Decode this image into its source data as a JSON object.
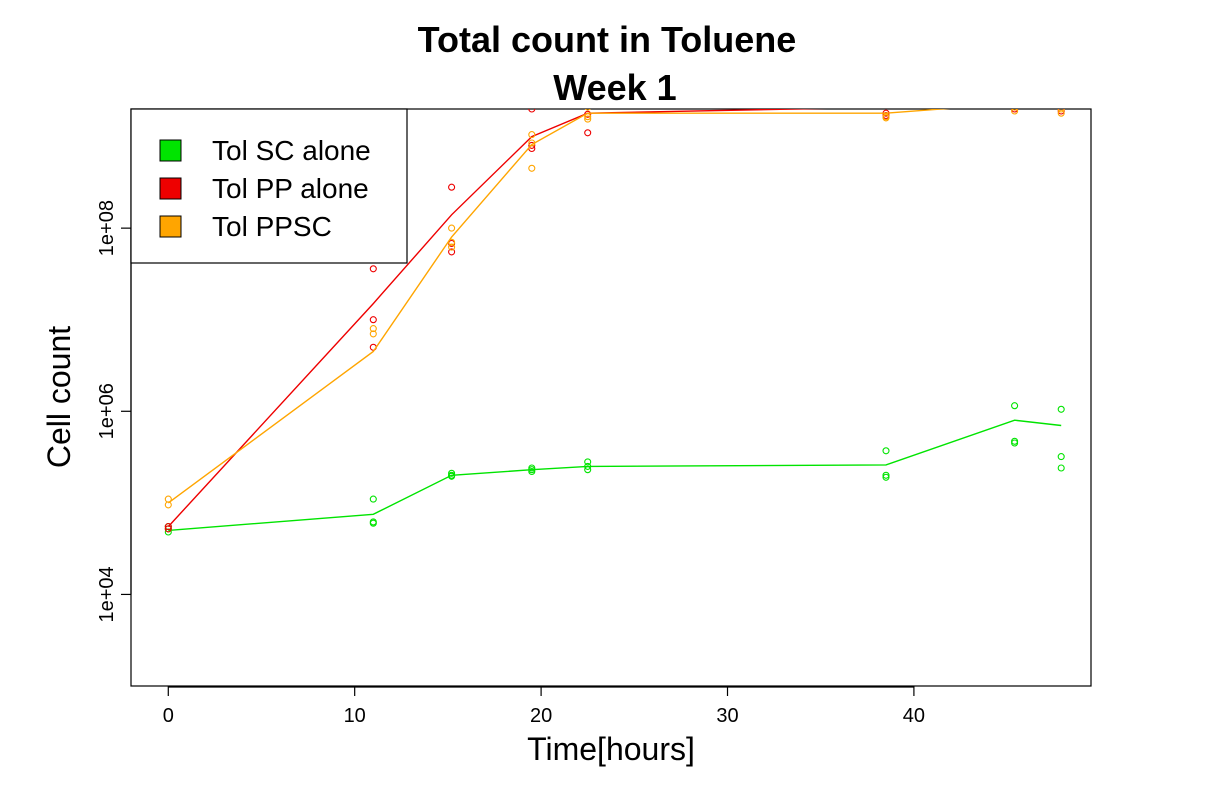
{
  "chart_data": {
    "type": "line",
    "title": "Total count in Toluene",
    "subtitle": "Week 1",
    "xlabel": "Time[hours]",
    "ylabel": "Cell count",
    "xlim": [
      -2,
      49.5
    ],
    "ylim": [
      1000,
      2000000000
    ],
    "y_scale": "log",
    "x_ticks": [
      0,
      10,
      20,
      30,
      40
    ],
    "x_tick_labels": [
      "0",
      "10",
      "20",
      "30",
      "40"
    ],
    "y_ticks": [
      10000,
      1000000,
      100000000
    ],
    "y_tick_labels": [
      "1e+04",
      "1e+06",
      "1e+08"
    ],
    "grid": false,
    "legend_position": "top-left",
    "series": [
      {
        "name": "Tol SC alone",
        "color": "#00e400",
        "line": {
          "x": [
            0,
            11,
            15.2,
            19.5,
            22.5,
            38.5,
            45.4,
            47.9
          ],
          "y": [
            50000,
            75000,
            200000,
            230000,
            250000,
            260000,
            800000,
            700000
          ]
        },
        "points": {
          "x": [
            0,
            0,
            0,
            11,
            11,
            11,
            15.2,
            15.2,
            15.2,
            19.5,
            19.5,
            19.5,
            22.5,
            22.5,
            22.5,
            38.5,
            38.5,
            38.5,
            45.4,
            45.4,
            45.4,
            47.9,
            47.9,
            47.9
          ],
          "y": [
            48000,
            52000,
            55000,
            60000,
            62000,
            110000,
            195000,
            200000,
            210000,
            220000,
            230000,
            240000,
            230000,
            250000,
            280000,
            190000,
            200000,
            370000,
            450000,
            470000,
            1150000,
            240000,
            320000,
            1050000
          ]
        }
      },
      {
        "name": "Tol PP alone",
        "color": "#ee0000",
        "line": {
          "x": [
            0,
            11,
            15.2,
            19.5,
            22.5,
            38.5,
            45.4,
            47.9
          ],
          "y": [
            55000,
            15000000,
            140000000,
            1000000000,
            1800000000,
            2100000000,
            2800000000,
            2800000000
          ]
        },
        "points": {
          "x": [
            0,
            0,
            11,
            11,
            11,
            15.2,
            15.2,
            15.2,
            19.5,
            19.5,
            19.5,
            22.5,
            22.5,
            22.5,
            38.5,
            38.5,
            38.5,
            45.4,
            45.4,
            45.4,
            47.9,
            47.9,
            47.9
          ],
          "y": [
            52000,
            55000,
            5000000,
            10000000,
            36000000,
            55000000,
            68000000,
            280000000,
            740000000,
            800000000,
            2000000000,
            1100000000,
            1750000000,
            2700000000,
            1700000000,
            1800000000,
            3500000000,
            2000000000,
            2200000000,
            4000000000,
            1900000000,
            2200000000,
            4000000000
          ]
        }
      },
      {
        "name": "Tol PPSC",
        "color": "#ffa500",
        "line": {
          "x": [
            0,
            11,
            15.2,
            19.5,
            22.5,
            38.5,
            45.4,
            47.9
          ],
          "y": [
            100000,
            4500000,
            80000000,
            820000000,
            1800000000,
            1800000000,
            2300000000,
            2200000000
          ]
        },
        "points": {
          "x": [
            0,
            0,
            11,
            11,
            15.2,
            15.2,
            15.2,
            19.5,
            19.5,
            19.5,
            22.5,
            22.5,
            22.5,
            38.5,
            38.5,
            38.5,
            45.4,
            45.4,
            45.4,
            47.9,
            47.9,
            47.9
          ],
          "y": [
            95000,
            110000,
            7000000,
            8000000,
            70000000,
            100000000,
            62000000,
            450000000,
            850000000,
            1050000000,
            1650000000,
            2100000000,
            1550000000,
            1650000000,
            2600000000,
            1600000000,
            1900000000,
            2100000000,
            3000000000,
            1800000000,
            2000000000,
            2600000000
          ]
        }
      }
    ]
  }
}
